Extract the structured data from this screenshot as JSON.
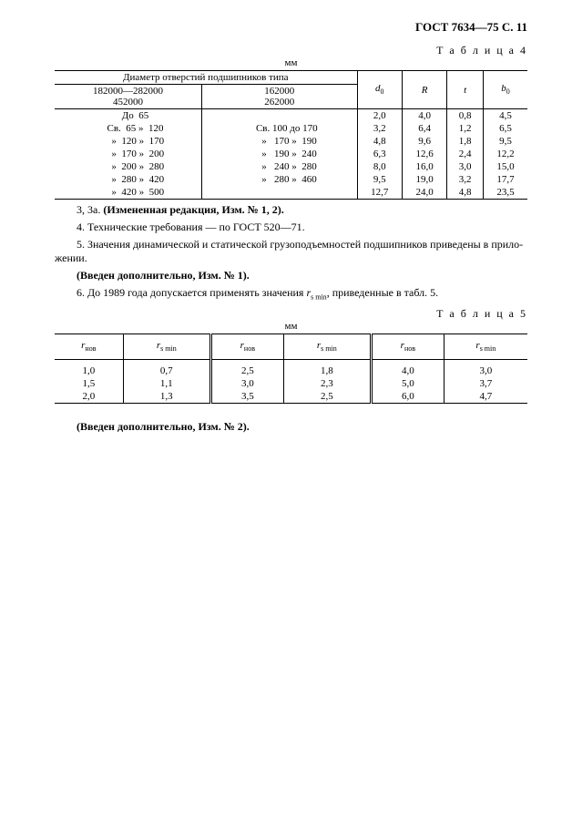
{
  "header": "ГОСТ 7634—75 С. 11",
  "table4": {
    "caption": "Т а б л и ц а  4",
    "unit": "мм",
    "groupHeader": "Диаметр отверстий подшипников типа",
    "subHeaders": {
      "c1": "182000—282000\n452000",
      "c2": "162000\n262000"
    },
    "valHeaders": {
      "d0": "d",
      "d0sub": "0",
      "R": "R",
      "t": "t",
      "b0": "b",
      "b0sub": "0"
    },
    "rows": [
      {
        "c1": "До  65",
        "c2": "",
        "d0": "2,0",
        "R": "4,0",
        "t": "0,8",
        "b0": "4,5"
      },
      {
        "c1": "Св.  65 »  120",
        "c2": "Св. 100 до 170",
        "d0": "3,2",
        "R": "6,4",
        "t": "1,2",
        "b0": "6,5"
      },
      {
        "c1": "  »  120 »  170",
        "c2": "  »   170 »  190",
        "d0": "4,8",
        "R": "9,6",
        "t": "1,8",
        "b0": "9,5"
      },
      {
        "c1": "  »  170 »  200",
        "c2": "  »   190 »  240",
        "d0": "6,3",
        "R": "12,6",
        "t": "2,4",
        "b0": "12,2"
      },
      {
        "c1": "  »  200 »  280",
        "c2": "  »   240 »  280",
        "d0": "8,0",
        "R": "16,0",
        "t": "3,0",
        "b0": "15,0"
      },
      {
        "c1": "  »  280 »  420",
        "c2": "  »   280 »  460",
        "d0": "9,5",
        "R": "19,0",
        "t": "3,2",
        "b0": "17,7"
      },
      {
        "c1": "  »  420 »  500",
        "c2": "",
        "d0": "12,7",
        "R": "24,0",
        "t": "4,8",
        "b0": "23,5"
      }
    ]
  },
  "paragraphs": {
    "p1a": "3, 3а. ",
    "p1b": "(Измененная редакция, Изм. № 1, 2).",
    "p2": "4. Технические требования — по ГОСТ 520—71.",
    "p3a": "5. Значения динамической и статической грузоподъемностей подшипников приведены в прило-",
    "p3b": "жении.",
    "p4": "(Введен дополнительно, Изм. № 1).",
    "p5a": "6. До 1989 года допускается применять значения ",
    "p5r": "r",
    "p5sub": "s min",
    "p5b": ", приведенные в табл. 5."
  },
  "table5": {
    "caption": "Т а б л и ц а  5",
    "unit": "мм",
    "headers": [
      "r",
      "r",
      "r",
      "r",
      "r",
      "r"
    ],
    "headerSubs": [
      "нов",
      "s min",
      "нов",
      "s min",
      "нов",
      "s min"
    ],
    "rows": [
      [
        "1,0",
        "0,7",
        "2,5",
        "1,8",
        "4,0",
        "3,0"
      ],
      [
        "1,5",
        "1,1",
        "3,0",
        "2,3",
        "5,0",
        "3,7"
      ],
      [
        "2,0",
        "1,3",
        "3,5",
        "2,5",
        "6,0",
        "4,7"
      ]
    ]
  },
  "footer": "(Введен дополнительно, Изм. № 2)."
}
